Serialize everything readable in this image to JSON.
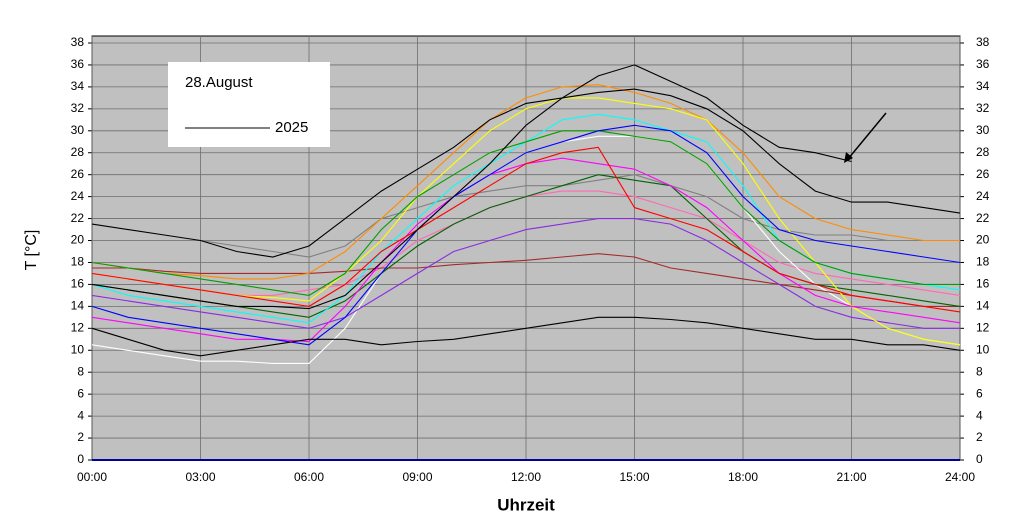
{
  "chart_data": {
    "type": "line",
    "legend_title": "28.August",
    "x_label": "Uhrzeit",
    "y_label": "T [°C]",
    "x": [
      0,
      1,
      2,
      3,
      4,
      5,
      6,
      7,
      8,
      9,
      10,
      11,
      12,
      13,
      14,
      15,
      16,
      17,
      18,
      19,
      20,
      21,
      22,
      23,
      24
    ],
    "xlim": [
      0,
      24
    ],
    "xticks": [
      {
        "value": 0,
        "label": "00:00"
      },
      {
        "value": 3,
        "label": "03:00"
      },
      {
        "value": 6,
        "label": "06:00"
      },
      {
        "value": 9,
        "label": "09:00"
      },
      {
        "value": 12,
        "label": "12:00"
      },
      {
        "value": 15,
        "label": "15:00"
      },
      {
        "value": 18,
        "label": "18:00"
      },
      {
        "value": 21,
        "label": "21:00"
      },
      {
        "value": 24,
        "label": "24:00"
      }
    ],
    "ylim": [
      0,
      38
    ],
    "yticks": [
      0,
      2,
      4,
      6,
      8,
      10,
      12,
      14,
      16,
      18,
      20,
      22,
      24,
      26,
      28,
      30,
      32,
      34,
      36,
      38
    ],
    "grid": true,
    "series": [
      {
        "name": "2025",
        "color": "#000000",
        "values": [
          16,
          15.5,
          15,
          14.5,
          14,
          14,
          13.8,
          15,
          18,
          21,
          24,
          27,
          30.5,
          33,
          35,
          36,
          34.5,
          33,
          30.5,
          28.5,
          28,
          27.2,
          null,
          null,
          null
        ]
      },
      {
        "color": "#000000",
        "values": [
          12,
          11,
          10,
          9.5,
          10,
          10.5,
          11,
          11,
          10.5,
          10.8,
          11,
          11.5,
          12,
          12.5,
          13,
          13,
          12.8,
          12.5,
          12,
          11.5,
          11,
          11,
          10.5,
          10.5,
          10
        ]
      },
      {
        "color": "#000000",
        "values": [
          21.5,
          21,
          20.5,
          20,
          19,
          18.5,
          19.5,
          22,
          24.5,
          26.5,
          28.5,
          31,
          32.5,
          33,
          33.5,
          33.8,
          33.2,
          32,
          30,
          27,
          24.5,
          23.5,
          23.5,
          23,
          22.5
        ]
      },
      {
        "color": "#ff0000",
        "values": [
          17,
          16.5,
          16,
          15.5,
          15,
          14.5,
          14,
          16,
          19,
          21,
          23,
          25,
          27,
          28,
          28.5,
          23,
          22,
          21,
          19,
          17,
          16,
          15,
          14.5,
          14,
          13.5
        ]
      },
      {
        "color": "#0000ff",
        "values": [
          14,
          13,
          12.5,
          12,
          11.5,
          11,
          10.5,
          13,
          17,
          21,
          24,
          26,
          28,
          29,
          30,
          30.5,
          30,
          28,
          24,
          21,
          20,
          19.5,
          19,
          18.5,
          18
        ]
      },
      {
        "color": "#00a000",
        "values": [
          18,
          17.5,
          17,
          16.5,
          16,
          15.5,
          15,
          17,
          21,
          24,
          26,
          28,
          29,
          30,
          30,
          29.5,
          29,
          27,
          23,
          20,
          18,
          17,
          16.5,
          16,
          16
        ]
      },
      {
        "color": "#ff00ff",
        "values": [
          13,
          12.5,
          12,
          11.5,
          11,
          11,
          10.8,
          14,
          18,
          21.5,
          24,
          26,
          27,
          27.5,
          27,
          26.5,
          25,
          23,
          20,
          17,
          15,
          14,
          13.5,
          13,
          12.5
        ]
      },
      {
        "color": "#00ffff",
        "values": [
          16,
          15,
          14.5,
          14,
          13.5,
          13,
          12.5,
          15,
          19,
          22,
          25,
          27,
          29,
          31,
          31.5,
          31,
          30,
          29,
          25,
          20,
          18,
          17,
          16.5,
          16,
          15.5
        ]
      },
      {
        "color": "#ffff00",
        "values": [
          17,
          16.5,
          16,
          15.5,
          15,
          14.8,
          14.5,
          17,
          20,
          24,
          27,
          30,
          32,
          33,
          33,
          32.5,
          32,
          31,
          27,
          22,
          18,
          14,
          12,
          11,
          10.5
        ]
      },
      {
        "color": "#ff8c00",
        "values": [
          18,
          17.5,
          17,
          16.8,
          16.5,
          16.5,
          17,
          19,
          22,
          25,
          28,
          31,
          33,
          34,
          34.2,
          33.5,
          32.5,
          31,
          28,
          24,
          22,
          21,
          20.5,
          20,
          20
        ]
      },
      {
        "color": "#8a2be2",
        "values": [
          15,
          14.5,
          14,
          13.5,
          13,
          12.5,
          12,
          13,
          15,
          17,
          19,
          20,
          21,
          21.5,
          22,
          22,
          21.5,
          20,
          18,
          16,
          14,
          13,
          12.5,
          12,
          12
        ]
      },
      {
        "color": "#006400",
        "values": [
          16,
          15.5,
          15,
          14.5,
          14,
          13.5,
          13,
          14.5,
          17,
          19.5,
          21.5,
          23,
          24,
          25,
          26,
          25.5,
          25,
          22,
          19,
          17,
          16,
          15.5,
          15,
          14.5,
          14
        ]
      },
      {
        "color": "#a52a2a",
        "values": [
          17.5,
          17.5,
          17.2,
          17,
          17,
          17,
          17,
          17.2,
          17.5,
          17.5,
          17.8,
          18,
          18.2,
          18.5,
          18.8,
          18.5,
          17.5,
          17,
          16.5,
          16,
          15.5,
          15,
          14.5,
          14,
          14
        ]
      },
      {
        "color": "#ffffff",
        "values": [
          10.5,
          10,
          9.5,
          9,
          9,
          8.8,
          8.8,
          12,
          17,
          21,
          24,
          26,
          28,
          29,
          29.5,
          29.5,
          29,
          27,
          23,
          19,
          16,
          14,
          12,
          11,
          10.5
        ]
      },
      {
        "color": "#808080",
        "values": [
          20,
          20,
          20,
          20,
          19.5,
          19,
          18.5,
          19.5,
          22,
          23,
          24,
          24.5,
          25,
          25,
          25.5,
          26,
          25,
          24,
          22,
          21,
          20.5,
          20.5,
          20,
          20,
          20
        ]
      },
      {
        "color": "#ff69b4",
        "values": [
          17,
          16.5,
          16,
          15.5,
          15,
          15,
          15.5,
          16,
          17.5,
          20,
          21.5,
          23,
          24,
          24.5,
          24.5,
          24,
          23,
          22,
          20,
          18,
          17,
          16.5,
          16,
          15.5,
          15
        ]
      }
    ]
  }
}
